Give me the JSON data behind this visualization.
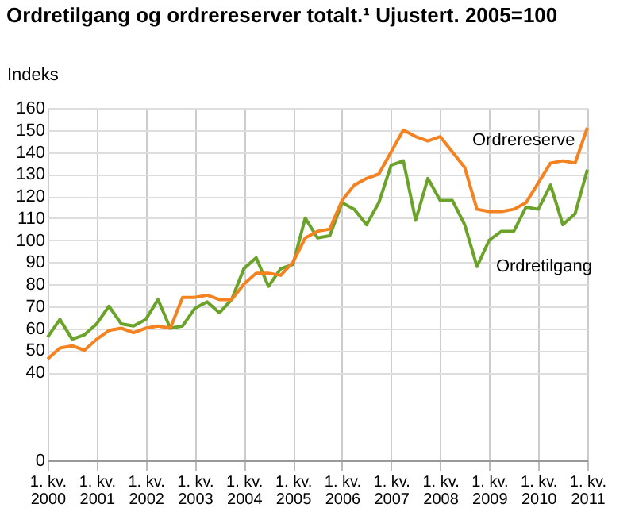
{
  "chart_data": {
    "type": "line",
    "title": "Ordretilgang og ordrereserver totalt.¹ Ujustert. 2005=100",
    "ylabel": "Indeks",
    "categories": [
      "1. kv. 2000",
      null,
      null,
      null,
      "1. kv. 2001",
      null,
      null,
      null,
      "1. kv. 2002",
      null,
      null,
      null,
      "1. kv. 2003",
      null,
      null,
      null,
      "1. kv. 2004",
      null,
      null,
      null,
      "1. kv. 2005",
      null,
      null,
      null,
      "1. kv. 2006",
      null,
      null,
      null,
      "1. kv. 2007",
      null,
      null,
      null,
      "1. kv. 2008",
      null,
      null,
      null,
      "1. kv. 2009",
      null,
      null,
      null,
      "1. kv. 2010",
      null,
      null,
      null,
      "1. kv. 2011"
    ],
    "series": [
      {
        "name": "Ordretilgang",
        "color": "#6ba32a",
        "values": [
          56,
          64,
          55,
          57,
          62,
          70,
          62,
          61,
          64,
          73,
          60,
          61,
          69,
          72,
          67,
          73,
          87,
          92,
          79,
          87,
          89,
          110,
          101,
          102,
          117,
          114,
          107,
          117,
          134,
          136,
          109,
          128,
          118,
          118,
          107,
          88,
          100,
          104,
          104,
          115,
          114,
          125,
          107,
          112,
          132
        ]
      },
      {
        "name": "Ordrereserve",
        "color": "#f58220",
        "values": [
          46,
          51,
          52,
          50,
          55,
          59,
          60,
          58,
          60,
          61,
          60,
          74,
          74,
          75,
          73,
          73,
          80,
          85,
          85,
          84,
          90,
          101,
          104,
          105,
          118,
          125,
          128,
          130,
          140,
          150,
          147,
          145,
          147,
          140,
          133,
          114,
          113,
          113,
          114,
          117,
          126,
          135,
          136,
          135,
          151
        ]
      }
    ],
    "ylim": [
      0,
      160
    ],
    "yticks": [
      0,
      40,
      50,
      60,
      70,
      80,
      90,
      100,
      110,
      120,
      130,
      140,
      150,
      160
    ],
    "grid": true,
    "marker": "none",
    "line_style": "solid"
  }
}
